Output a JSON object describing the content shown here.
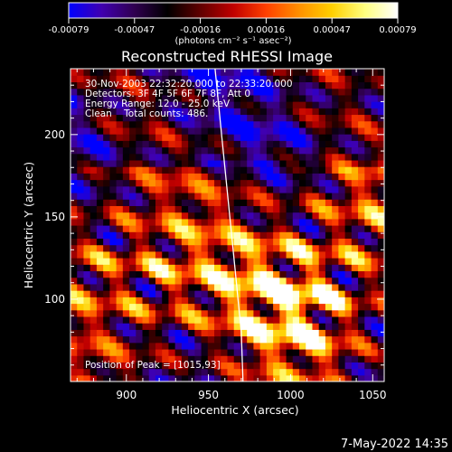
{
  "chart_data": {
    "type": "heatmap",
    "title": "Reconstructed RHESSI Image",
    "xlabel": "Heliocentric X (arcsec)",
    "ylabel": "Heliocentric Y (arcsec)",
    "xlim": [
      866,
      1057
    ],
    "ylim": [
      50,
      240
    ],
    "x_ticks": [
      900,
      950,
      1000,
      1050
    ],
    "y_ticks": [
      100,
      150,
      200
    ],
    "colorbar": {
      "range": [
        -0.00079,
        0.00079
      ],
      "ticks": [
        "-0.00079",
        "-0.00047",
        "-0.00016",
        "0.00016",
        "0.00047",
        "0.00079"
      ],
      "unit_label": "(photons cm⁻² s⁻¹ asec⁻²)",
      "colormap": [
        "#0000ff",
        "#4000b0",
        "#300050",
        "#000000",
        "#600000",
        "#c00000",
        "#ff4000",
        "#ff9000",
        "#ffd000",
        "#ffff80",
        "#ffffff"
      ]
    },
    "info_lines": [
      "30-Nov-2003 22:32:20.000 to 22:33:20.000",
      "Detectors: 3F 4F 5F 6F 7F 8F, Att 0",
      "Energy Range: 12.0 - 25.0 keV",
      "Clean    Total counts: 486."
    ],
    "peak_label": "Position of Peak = [1015,93]",
    "limb_line": [
      [
        954,
        240
      ],
      [
        958,
        200
      ],
      [
        962,
        160
      ],
      [
        966,
        120
      ],
      [
        970,
        80
      ],
      [
        971,
        50
      ]
    ],
    "emission_peaks": [
      {
        "x": 925,
        "y": 112,
        "value": 0.00079
      },
      {
        "x": 886,
        "y": 120,
        "value": 0.0006
      },
      {
        "x": 1003,
        "y": 100,
        "value": 0.0007
      },
      {
        "x": 1015,
        "y": 93,
        "value": 0.00079
      },
      {
        "x": 1040,
        "y": 150,
        "value": 0.0006
      },
      {
        "x": 985,
        "y": 110,
        "value": 0.0005
      }
    ]
  },
  "footer": {
    "timestamp": "7-May-2022 14:35"
  }
}
